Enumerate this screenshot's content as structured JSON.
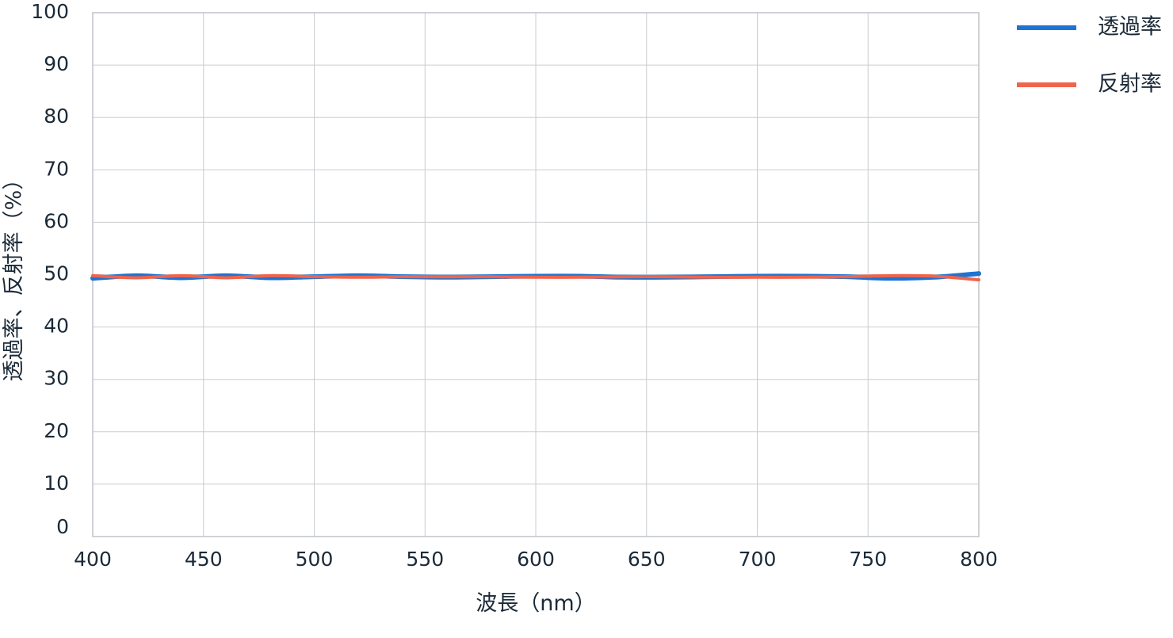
{
  "chart_data": {
    "type": "line",
    "title": "",
    "xlabel": "波長（nm）",
    "ylabel": "透過率、反射率（%）",
    "xlim": [
      400,
      800
    ],
    "ylim": [
      0,
      100
    ],
    "x_ticks": [
      400,
      450,
      500,
      550,
      600,
      650,
      700,
      750,
      800
    ],
    "y_ticks": [
      0,
      10,
      20,
      30,
      40,
      50,
      60,
      70,
      80,
      90,
      100
    ],
    "grid": true,
    "legend_position": "top-right",
    "series": [
      {
        "name": "透過率",
        "color": "#1f73d1",
        "x": [
          400,
          420,
          440,
          460,
          480,
          500,
          520,
          540,
          560,
          580,
          600,
          620,
          640,
          660,
          680,
          700,
          720,
          740,
          760,
          780,
          800
        ],
        "y": [
          49.3,
          49.8,
          49.4,
          49.8,
          49.4,
          49.6,
          49.8,
          49.6,
          49.5,
          49.6,
          49.7,
          49.7,
          49.5,
          49.5,
          49.6,
          49.7,
          49.7,
          49.6,
          49.3,
          49.5,
          50.2
        ]
      },
      {
        "name": "反射率",
        "color": "#f0644d",
        "x": [
          400,
          420,
          440,
          460,
          480,
          500,
          520,
          540,
          560,
          580,
          600,
          620,
          640,
          660,
          680,
          700,
          720,
          740,
          760,
          780,
          800
        ],
        "y": [
          49.8,
          49.4,
          49.8,
          49.4,
          49.8,
          49.6,
          49.5,
          49.6,
          49.6,
          49.6,
          49.5,
          49.5,
          49.6,
          49.6,
          49.5,
          49.5,
          49.5,
          49.6,
          49.8,
          49.7,
          49.0
        ]
      }
    ]
  }
}
